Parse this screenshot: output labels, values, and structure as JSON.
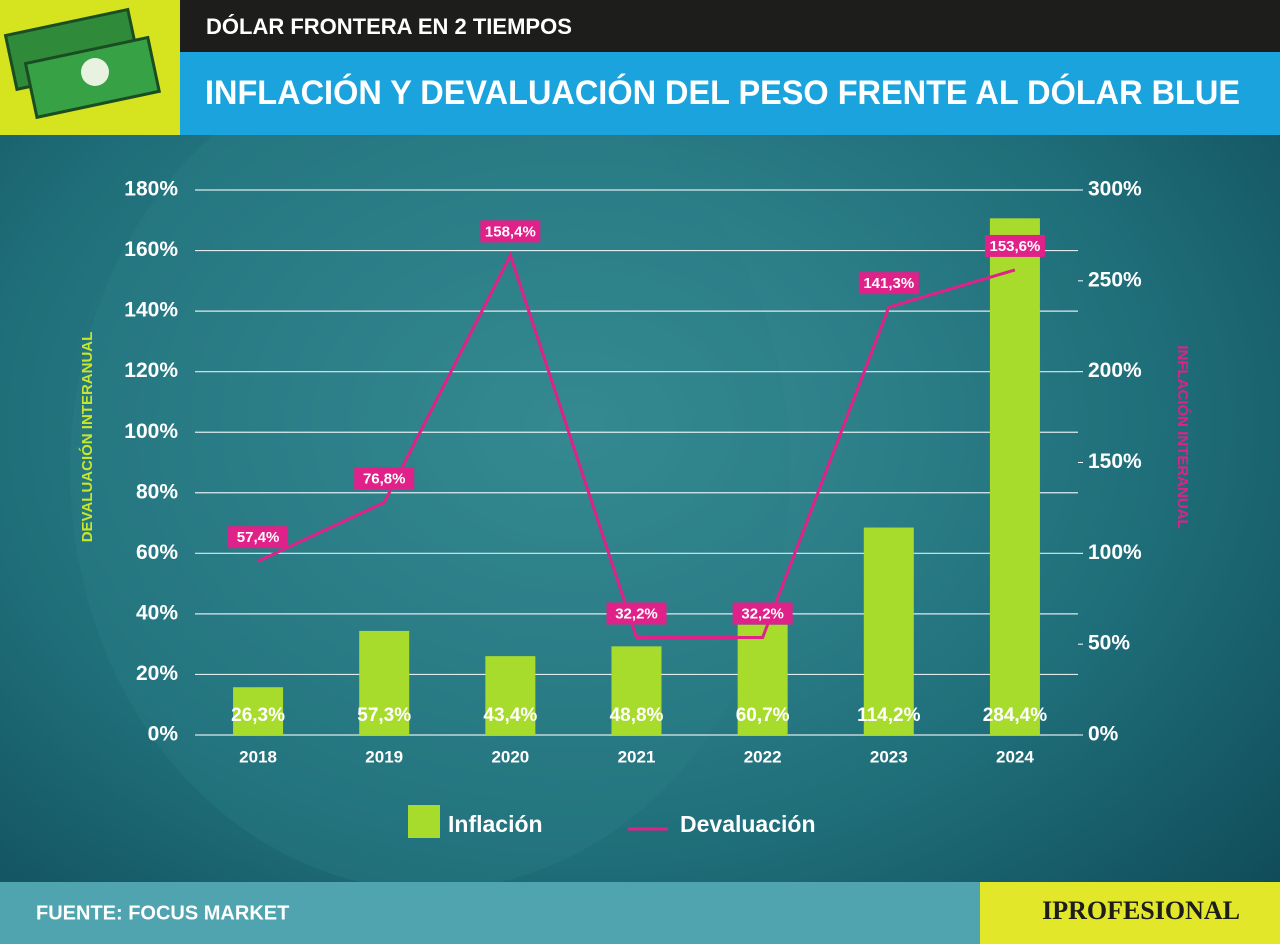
{
  "chart_data": {
    "type": "bar-line",
    "kicker": "DÓLAR FRONTERA EN 2 TIEMPOS",
    "title": "INFLACIÓN Y DEVALUACIÓN DEL PESO FRENTE AL DÓLAR BLUE",
    "ylabel": "DEVALUACIÓN INTERANUAL",
    "y2label": "INFLACIÓN INTERANUAL",
    "source": "FUENTE: FOCUS MARKET",
    "brand": "IPROFESIONAL",
    "categories": [
      "2018",
      "2019",
      "2020",
      "2021",
      "2022",
      "2023",
      "2024"
    ],
    "series": [
      {
        "name": "Inflación",
        "type": "bar",
        "axis": "y2",
        "color": "#a8dc2c",
        "values": [
          26.3,
          57.3,
          43.4,
          48.8,
          60.7,
          114.2,
          284.4
        ],
        "value_labels": [
          "26,3%",
          "57,3%",
          "43,4%",
          "48,8%",
          "60,7%",
          "114,2%",
          "284,4%"
        ]
      },
      {
        "name": "Devaluación",
        "type": "line",
        "color": "#e0218a",
        "values": [
          57.4,
          76.8,
          158.4,
          32.2,
          32.2,
          141.3,
          153.6
        ],
        "value_labels": [
          "57,4%",
          "76,8%",
          "158,4%",
          "32,2%",
          "32,2%",
          "141,3%",
          "153,6%"
        ]
      }
    ],
    "ylim": [
      0,
      180
    ],
    "yticks": [
      {
        "value": 0,
        "label": "0%"
      },
      {
        "value": 20,
        "label": "20%"
      },
      {
        "value": 40,
        "label": "40%"
      },
      {
        "value": 60,
        "label": "60%"
      },
      {
        "value": 80,
        "label": "80%"
      },
      {
        "value": 100,
        "label": "100%"
      },
      {
        "value": 120,
        "label": "120%"
      },
      {
        "value": 140,
        "label": "140%"
      },
      {
        "value": 160,
        "label": "160%"
      },
      {
        "value": 180,
        "label": "180%"
      }
    ],
    "y2lim": [
      0,
      300
    ],
    "y2ticks": [
      {
        "value": 0,
        "label": "0%"
      },
      {
        "value": 50,
        "label": "50%"
      },
      {
        "value": 100,
        "label": "100%"
      },
      {
        "value": 150,
        "label": "150%"
      },
      {
        "value": 200,
        "label": "200%"
      },
      {
        "value": 250,
        "label": "250%"
      },
      {
        "value": 300,
        "label": "300%"
      }
    ],
    "grid": true
  }
}
